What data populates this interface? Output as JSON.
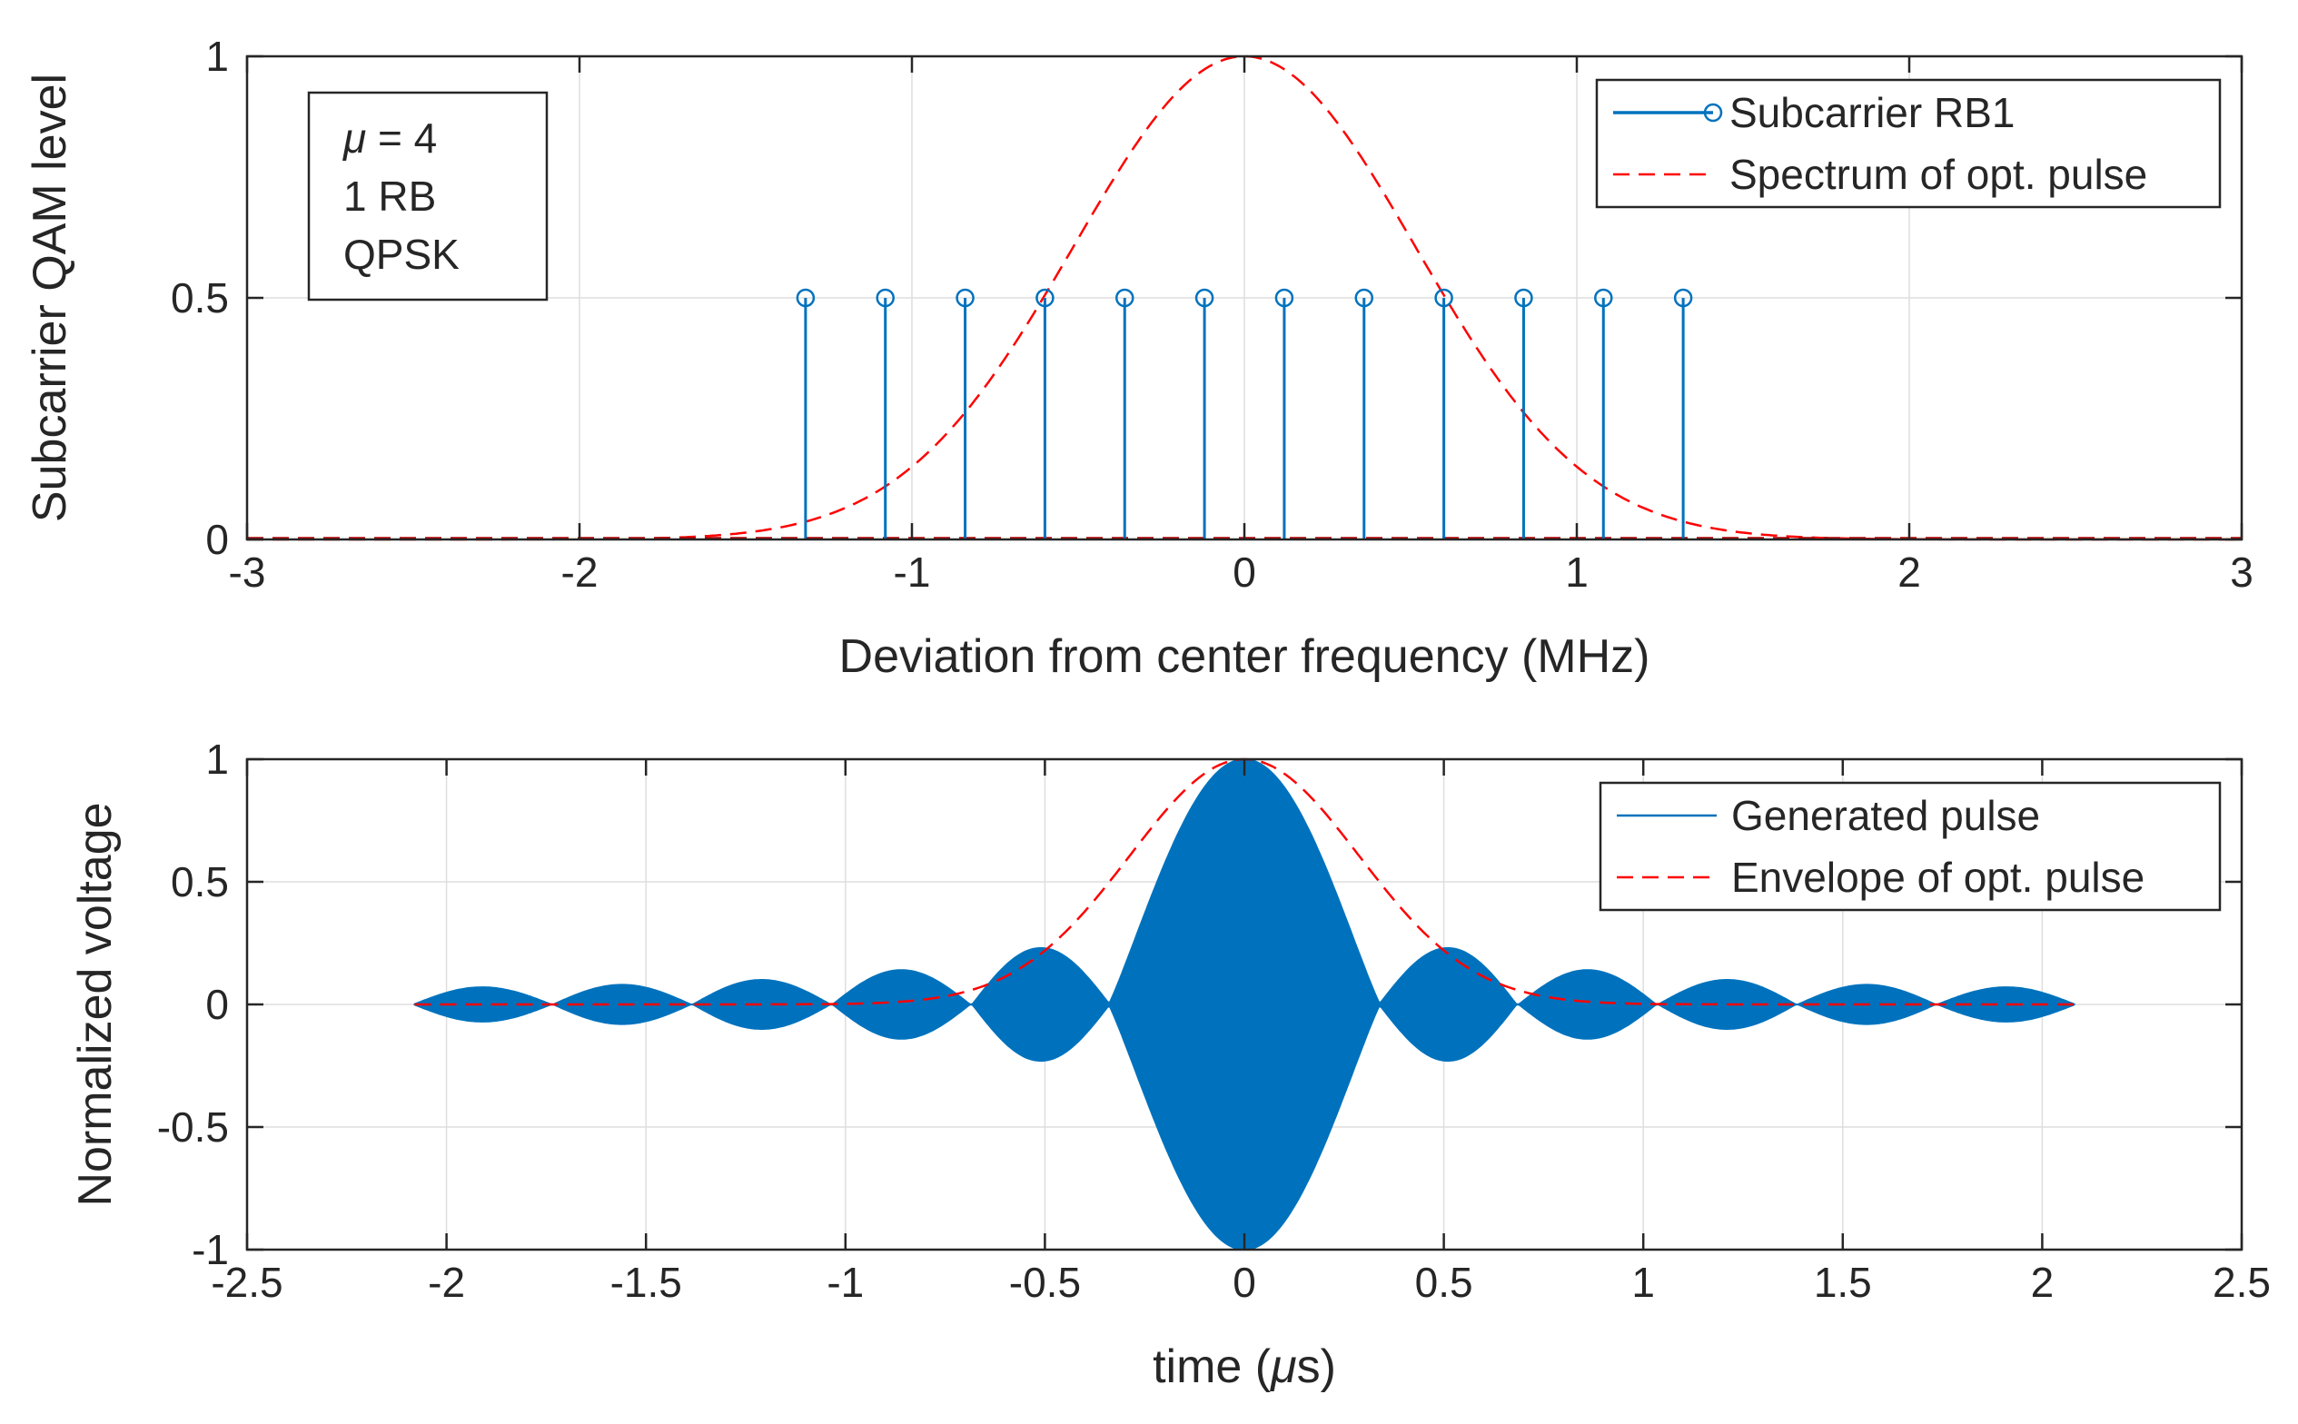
{
  "chart_data": [
    {
      "type": "stem",
      "xlabel": "Deviation from center frequency (MHz)",
      "ylabel": "Subcarrier QAM level",
      "xlim": [
        -3,
        3
      ],
      "ylim": [
        0,
        1
      ],
      "xticks": [
        -3,
        -2,
        -1,
        0,
        1,
        2,
        3
      ],
      "xtick_labels": [
        "-3",
        "-2",
        "-1",
        "0",
        "1",
        "2",
        "3"
      ],
      "yticks": [
        0,
        0.5,
        1
      ],
      "ytick_labels": [
        "0",
        "0.5",
        "1"
      ],
      "grid": true,
      "legend_placement": "top-right",
      "annotation": {
        "mu_symbol": "μ",
        "mu_value": " = 4",
        "line2": "1 RB",
        "line3": "QPSK"
      },
      "series": [
        {
          "name": "Subcarrier RB1",
          "kind": "stem",
          "color": "#0072BD",
          "x": [
            -1.32,
            -1.08,
            -0.84,
            -0.6,
            -0.36,
            -0.12,
            0.12,
            0.36,
            0.6,
            0.84,
            1.08,
            1.32
          ],
          "y": [
            0.5,
            0.5,
            0.5,
            0.5,
            0.5,
            0.5,
            0.5,
            0.5,
            0.5,
            0.5,
            0.5,
            0.5
          ]
        },
        {
          "name": "Spectrum of opt. pulse",
          "kind": "dashed-line",
          "color": "#FF0000",
          "shape": "gaussian",
          "peak": 1,
          "center": 0,
          "half_max_full_width": 1.21
        }
      ]
    },
    {
      "type": "line",
      "xlabel_prefix": "time (",
      "xlabel_symbol": "μ",
      "xlabel_suffix": "s)",
      "ylabel": "Normalized voltage",
      "xlim": [
        -2.5,
        2.5
      ],
      "ylim": [
        -1,
        1
      ],
      "xticks": [
        -2.5,
        -2,
        -1.5,
        -1,
        -0.5,
        0,
        0.5,
        1,
        1.5,
        2,
        2.5
      ],
      "xtick_labels": [
        "-2.5",
        "-2",
        "-1.5",
        "-1",
        "-0.5",
        "0",
        "0.5",
        "1",
        "1.5",
        "2",
        "2.5"
      ],
      "yticks": [
        -1,
        -0.5,
        0,
        0.5,
        1
      ],
      "ytick_labels": [
        "-1",
        "-0.5",
        "0",
        "0.5",
        "1"
      ],
      "grid": true,
      "legend_placement": "top-right",
      "series": [
        {
          "name": "Generated pulse",
          "kind": "filled-oscillation",
          "color": "#0072BD",
          "t_range": [
            -2.08,
            2.08
          ],
          "envelope": "sinc-like",
          "main_lobe_peak": 1,
          "main_lobe_half_width": 0.34,
          "side_lobes": [
            {
              "center": -0.51,
              "amplitude": 0.23
            },
            {
              "center": -0.86,
              "amplitude": 0.14
            },
            {
              "center": -1.21,
              "amplitude": 0.1
            },
            {
              "center": -1.56,
              "amplitude": 0.08
            },
            {
              "center": -1.91,
              "amplitude": 0.07
            },
            {
              "center": 0.51,
              "amplitude": 0.23
            },
            {
              "center": 0.86,
              "amplitude": 0.14
            },
            {
              "center": 1.21,
              "amplitude": 0.1
            },
            {
              "center": 1.56,
              "amplitude": 0.08
            },
            {
              "center": 1.91,
              "amplitude": 0.07
            }
          ]
        },
        {
          "name": "Envelope of opt. pulse",
          "kind": "dashed-line",
          "color": "#FF0000",
          "shape": "gaussian",
          "peak": 1,
          "center": 0,
          "value_at_0.5": 0.22
        }
      ]
    }
  ]
}
